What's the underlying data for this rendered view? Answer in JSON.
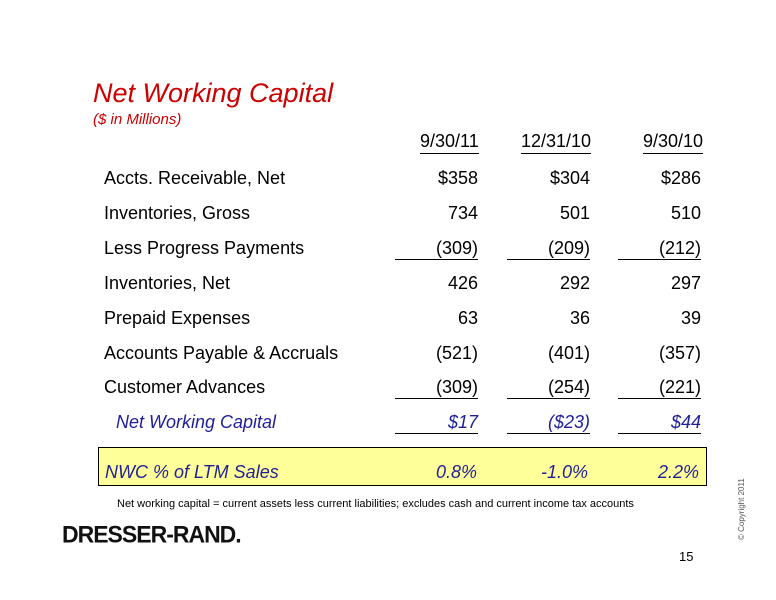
{
  "title": "Net Working Capital",
  "subtitle": "($ in Millions)",
  "columns": [
    "9/30/11",
    "12/31/10",
    "9/30/10"
  ],
  "rows": [
    {
      "label": "Accts. Receivable, Net",
      "values": [
        "$358",
        "$304",
        "$286"
      ]
    },
    {
      "label": "Inventories, Gross",
      "values": [
        "734",
        "501",
        "510"
      ]
    },
    {
      "label": "Less Progress Payments",
      "values": [
        "(309)",
        "(209)",
        "(212)"
      ]
    },
    {
      "label": "Inventories, Net",
      "values": [
        "426",
        "292",
        "297"
      ]
    },
    {
      "label": "Prepaid Expenses",
      "values": [
        "63",
        "36",
        "39"
      ]
    },
    {
      "label": "Accounts Payable & Accruals",
      "values": [
        "(521)",
        "(401)",
        "(357)"
      ]
    },
    {
      "label": "Customer Advances",
      "values": [
        "(309)",
        "(254)",
        "(221)"
      ]
    },
    {
      "label": "Net Working Capital",
      "values": [
        "$17",
        "($23)",
        "$44"
      ]
    }
  ],
  "nwc_pct": {
    "label": "NWC % of LTM Sales",
    "values": [
      "0.8%",
      "-1.0%",
      "2.2%"
    ]
  },
  "footnote": "Net working capital = current assets less current liabilities; excludes cash and current income tax accounts",
  "logo_text": "DRESSER-RAND.",
  "copyright": "© Copyright 2011",
  "page_number": "15"
}
